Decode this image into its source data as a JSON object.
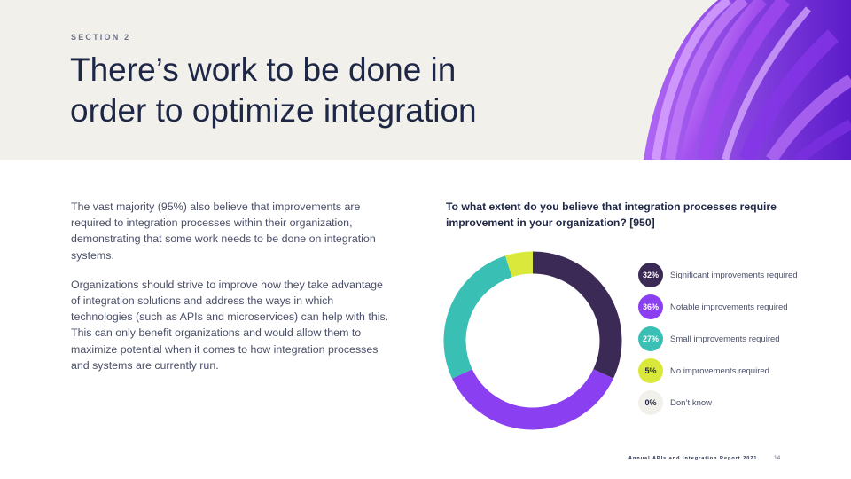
{
  "header": {
    "section_label": "SECTION 2",
    "title": "There’s work to be done in order to optimize integration"
  },
  "body": {
    "paragraph1": "The vast majority (95%) also believe that improvements are required to integration processes within their organization, demonstrating that some work needs to be done on integration systems.",
    "paragraph2": "Organizations should strive to improve how they take advantage of integration solutions and address the ways in which technologies (such as APIs and microservices) can help with this. This can only benefit organizations and would allow them to maximize potential when it comes to how integration processes and systems are currently run."
  },
  "chart_data": {
    "type": "pie",
    "title": "To what extent do you believe that integration processes require improvement in your organization? [950]",
    "categories": [
      "Significant improvements required",
      "Notable improvements required",
      "Small improvements required",
      "No improvements required",
      "Don’t know"
    ],
    "values": [
      32,
      36,
      27,
      5,
      0
    ],
    "value_labels": [
      "32%",
      "36%",
      "27%",
      "5%",
      "0%"
    ],
    "colors": [
      "#3b2a55",
      "#8a3ff0",
      "#39bfb4",
      "#d9e83a",
      "#f1f0ea"
    ],
    "legend_text_colors": [
      "#ffffff",
      "#ffffff",
      "#ffffff",
      "#1f2747",
      "#1f2747"
    ],
    "legend_position": "right"
  },
  "footer": {
    "report_name": "Annual APIs and Integration Report 2021",
    "page_number": "14"
  }
}
